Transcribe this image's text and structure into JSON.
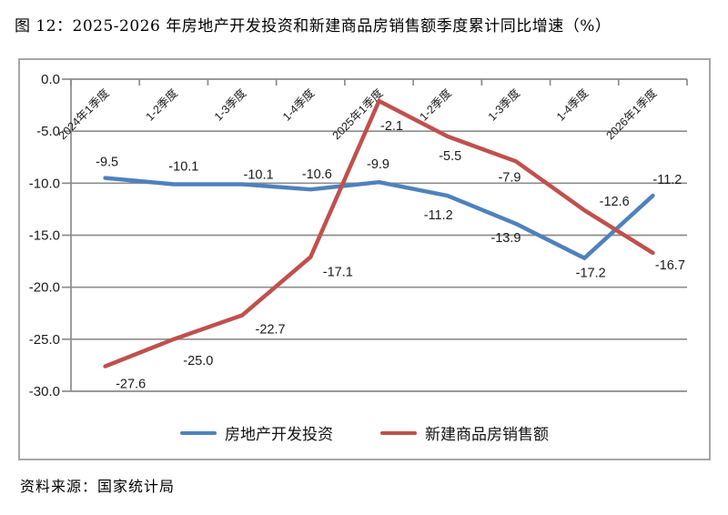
{
  "title": "图 12：2025-2026 年房地产开发投资和新建商品房销售额季度累计同比增速（%）",
  "source": "资料来源：国家统计局",
  "colors": {
    "investment_line": "#4F81BD",
    "sales_line": "#C0504D",
    "gridline": "#8C8C8C",
    "frame_border": "#A6A6A6",
    "label_text": "#1A1A1A"
  },
  "legend": {
    "items": [
      {
        "label": "房地产开发投资",
        "color": "#4F81BD"
      },
      {
        "label": "新建商品房销售额",
        "color": "#C0504D"
      }
    ]
  },
  "chart_data": {
    "type": "line",
    "title": "图 12：2025-2026 年房地产开发投资和新建商品房销售额季度累计同比增速（%）",
    "categories": [
      "2024年1季度",
      "1-2季度",
      "1-3季度",
      "1-4季度",
      "2025年1季度",
      "1-2季度",
      "1-3季度",
      "1-4季度",
      "2026年1季度"
    ],
    "series": [
      {
        "name": "房地产开发投资",
        "color": "#4F81BD",
        "values": [
          -9.5,
          -10.1,
          -10.1,
          -10.6,
          -9.9,
          -11.2,
          -13.9,
          -17.2,
          -11.2
        ]
      },
      {
        "name": "新建商品房销售额",
        "color": "#C0504D",
        "values": [
          -27.6,
          -25.0,
          -22.7,
          -17.1,
          -2.1,
          -5.5,
          -7.9,
          -12.6,
          -16.7
        ]
      }
    ],
    "xlabel": "",
    "ylabel": "",
    "ylim": [
      -30,
      0
    ],
    "yticks": [
      0,
      -5,
      -10,
      -15,
      -20,
      -25,
      -30
    ],
    "ytick_labels": [
      "0.0",
      "-5.0",
      "-10.0",
      "-15.0",
      "-20.0",
      "-25.0",
      "-30.0"
    ],
    "grid": true,
    "data_labels": true,
    "legend_position": "bottom"
  }
}
